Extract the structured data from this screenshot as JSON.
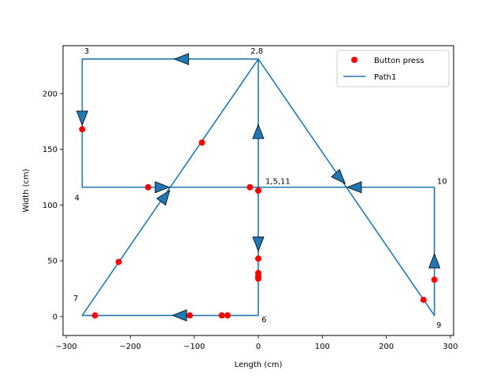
{
  "chart_data": {
    "type": "line",
    "xlabel": "Length (cm)",
    "ylabel": "Width (cm)",
    "xlim": [
      -305,
      305
    ],
    "ylim": [
      -17,
      243
    ],
    "xticks": [
      -300,
      -200,
      -100,
      0,
      100,
      200,
      300
    ],
    "yticks": [
      0,
      50,
      100,
      150,
      200
    ],
    "grid": false,
    "legend_position": "top-right",
    "colors": {
      "path": "#1f77b4",
      "points": "#ff0000"
    },
    "series": [
      {
        "name": "Path1",
        "type": "line",
        "x": [
          0,
          0,
          0,
          -275,
          -275,
          0,
          0,
          -275,
          0,
          0,
          275,
          275,
          0
        ],
        "y": [
          116,
          116,
          231,
          231,
          116,
          116,
          1,
          1,
          231,
          231,
          1,
          116,
          116
        ]
      },
      {
        "name": "Button press",
        "type": "scatter",
        "x": [
          -275,
          -88,
          -172,
          -13,
          0,
          -218,
          0,
          0,
          0,
          0,
          -255,
          -107,
          -57,
          -48,
          258,
          275
        ],
        "y": [
          168,
          156,
          116,
          116,
          113,
          49,
          52,
          39,
          36,
          34,
          1,
          1,
          1,
          1,
          15,
          33
        ]
      }
    ],
    "arrows": [
      {
        "x": -120,
        "y": 231,
        "dir": "left"
      },
      {
        "x": -275,
        "y": 178,
        "dir": "down"
      },
      {
        "x": -150,
        "y": 116,
        "dir": "right"
      },
      {
        "x": 0,
        "y": 166,
        "dir": "up"
      },
      {
        "x": 0,
        "y": 65,
        "dir": "down"
      },
      {
        "x": -123,
        "y": 1,
        "dir": "left"
      },
      {
        "x": -145,
        "y": 108,
        "dir": "upright"
      },
      {
        "x": 128,
        "y": 124,
        "dir": "downright"
      },
      {
        "x": 150,
        "y": 116,
        "dir": "left"
      },
      {
        "x": 275,
        "y": 50,
        "dir": "up"
      }
    ],
    "annotations": [
      {
        "text": "3",
        "x": -272,
        "y": 236
      },
      {
        "text": "2,8",
        "x": -12,
        "y": 236
      },
      {
        "text": "4",
        "x": -287,
        "y": 104
      },
      {
        "text": "1,5,11",
        "x": 11,
        "y": 119
      },
      {
        "text": "10",
        "x": 279,
        "y": 119
      },
      {
        "text": "7",
        "x": -289,
        "y": 14
      },
      {
        "text": "6",
        "x": 5,
        "y": -5
      },
      {
        "text": "9",
        "x": 278,
        "y": -10
      }
    ]
  }
}
